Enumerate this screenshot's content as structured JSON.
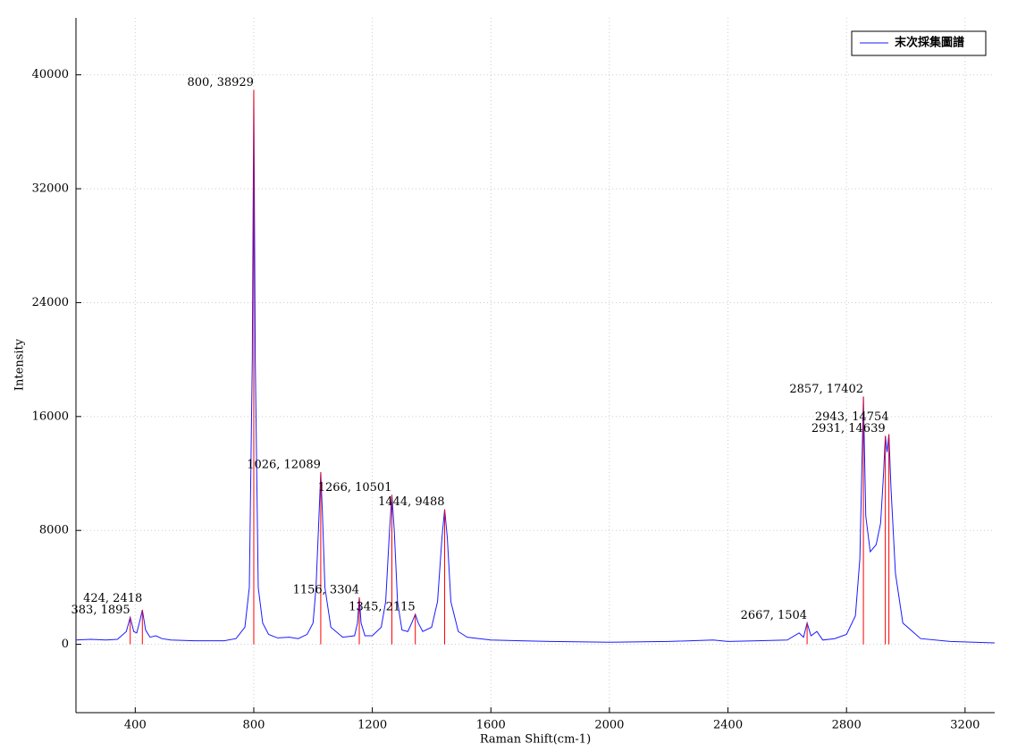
{
  "chart_data": {
    "type": "line",
    "xlabel": "Raman Shift(cm-1)",
    "ylabel": "Intensity",
    "xlim": [
      200,
      3300
    ],
    "ylim": [
      -4800,
      44000
    ],
    "xticks": [
      400,
      800,
      1200,
      1600,
      2000,
      2400,
      2800,
      3200
    ],
    "yticks": [
      0,
      8000,
      16000,
      24000,
      32000,
      40000
    ],
    "grid": true,
    "legend": "upper right",
    "series": [
      {
        "name": "末次採集圖譜",
        "color": "#1a1aff",
        "x": [
          200,
          250,
          300,
          340,
          370,
          383,
          395,
          405,
          415,
          424,
          435,
          450,
          470,
          490,
          520,
          600,
          700,
          740,
          770,
          785,
          795,
          800,
          805,
          815,
          830,
          850,
          880,
          920,
          950,
          980,
          1000,
          1010,
          1020,
          1026,
          1032,
          1040,
          1060,
          1100,
          1140,
          1150,
          1156,
          1162,
          1175,
          1200,
          1230,
          1245,
          1258,
          1266,
          1274,
          1285,
          1300,
          1320,
          1335,
          1345,
          1355,
          1370,
          1400,
          1420,
          1435,
          1444,
          1453,
          1465,
          1490,
          1520,
          1600,
          1700,
          1800,
          2000,
          2200,
          2350,
          2400,
          2500,
          2600,
          2640,
          2655,
          2667,
          2680,
          2700,
          2720,
          2760,
          2800,
          2830,
          2845,
          2857,
          2865,
          2880,
          2900,
          2915,
          2925,
          2931,
          2937,
          2943,
          2950,
          2965,
          2990,
          3050,
          3150,
          3300
        ],
        "values": [
          300,
          350,
          300,
          350,
          900,
          1895,
          900,
          800,
          1600,
          2418,
          1000,
          500,
          600,
          400,
          300,
          250,
          250,
          400,
          1200,
          4000,
          20000,
          38929,
          20000,
          4000,
          1500,
          700,
          450,
          500,
          400,
          700,
          1500,
          4000,
          9000,
          12089,
          9000,
          4000,
          1200,
          500,
          600,
          1500,
          3304,
          1500,
          600,
          600,
          1200,
          3000,
          8000,
          10501,
          8000,
          3000,
          1000,
          900,
          1600,
          2115,
          1500,
          900,
          1200,
          3000,
          7500,
          9488,
          7500,
          3000,
          900,
          500,
          300,
          250,
          200,
          150,
          200,
          300,
          200,
          250,
          300,
          800,
          500,
          1504,
          600,
          900,
          300,
          400,
          700,
          2000,
          6000,
          17402,
          9000,
          6500,
          7000,
          8500,
          12000,
          14639,
          13500,
          14754,
          11000,
          5000,
          1500,
          400,
          200,
          100
        ]
      }
    ],
    "peaks": {
      "color": "#ff0000",
      "x": [
        383,
        424,
        800,
        1026,
        1156,
        1266,
        1345,
        1444,
        2667,
        2857,
        2931,
        2943
      ],
      "values": [
        1895,
        2418,
        38929,
        12089,
        3304,
        10501,
        2115,
        9488,
        1504,
        17402,
        14639,
        14754
      ],
      "value_labels": [
        "383, 1895",
        "424, 2418",
        "800, 38929",
        "1026, 12089",
        "1156, 3304",
        "1266, 10501",
        "1345, 2115",
        "1444, 9488",
        "2667, 1504",
        "2857, 17402",
        "2931, 14639",
        "2943, 14754"
      ]
    }
  }
}
